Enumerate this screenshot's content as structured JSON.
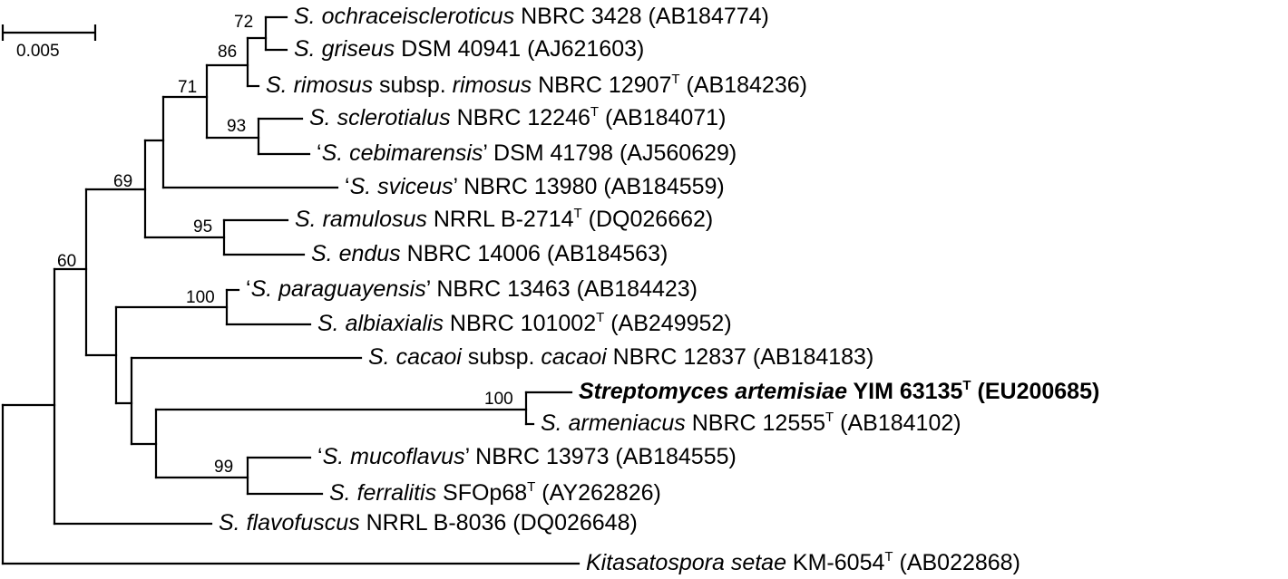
{
  "scale_bar": {
    "label": "0.005"
  },
  "taxa": [
    {
      "id": "ochraceiscleroticus",
      "species": "S. ochraceiscleroticus",
      "strain": "NBRC 3428",
      "type": "",
      "accession": "(AB184774)",
      "quote": false,
      "bold": false
    },
    {
      "id": "griseus",
      "species": "S. griseus",
      "strain": "DSM 40941",
      "type": "",
      "accession": "(AJ621603)",
      "quote": false,
      "bold": false
    },
    {
      "id": "rimosus",
      "species": "S. rimosus",
      "mid": "subsp.",
      "species2": "rimosus",
      "strain": "NBRC 12907",
      "type": "T",
      "accession": "(AB184236)",
      "quote": false,
      "bold": false
    },
    {
      "id": "sclerotialus",
      "species": "S. sclerotialus",
      "strain": "NBRC 12246",
      "type": "T",
      "accession": "(AB184071)",
      "quote": false,
      "bold": false
    },
    {
      "id": "cebimarensis",
      "species": "S. cebimarensis",
      "strain": "DSM 41798",
      "type": "",
      "accession": "(AJ560629)",
      "quote": true,
      "bold": false
    },
    {
      "id": "sviceus",
      "species": "S. sviceus",
      "strain": "NBRC 13980",
      "type": "",
      "accession": "(AB184559)",
      "quote": true,
      "bold": false
    },
    {
      "id": "ramulosus",
      "species": "S. ramulosus",
      "strain": "NRRL B-2714",
      "type": "T",
      "accession": "(DQ026662)",
      "quote": false,
      "bold": false
    },
    {
      "id": "endus",
      "species": "S. endus",
      "strain": "NBRC 14006",
      "type": "",
      "accession": "(AB184563)",
      "quote": false,
      "bold": false
    },
    {
      "id": "paraguayensis",
      "species": "S. paraguayensis",
      "strain": "NBRC 13463",
      "type": "",
      "accession": "(AB184423)",
      "quote": true,
      "bold": false
    },
    {
      "id": "albiaxialis",
      "species": "S. albiaxialis",
      "strain": "NBRC 101002",
      "type": "T",
      "accession": "(AB249952)",
      "quote": false,
      "bold": false
    },
    {
      "id": "cacaoi",
      "species": "S. cacaoi",
      "mid": "subsp.",
      "species2": "cacaoi",
      "strain": "NBRC 12837",
      "type": "",
      "accession": "(AB184183)",
      "quote": false,
      "bold": false
    },
    {
      "id": "artemisiae",
      "species": "Streptomyces artemisiae",
      "strain": "YIM 63135",
      "type": "T",
      "accession": "(EU200685)",
      "quote": false,
      "bold": true
    },
    {
      "id": "armeniacus",
      "species": "S. armeniacus",
      "strain": "NBRC 12555",
      "type": "T",
      "accession": "(AB184102)",
      "quote": false,
      "bold": false
    },
    {
      "id": "mucoflavus",
      "species": "S. mucoflavus",
      "strain": "NBRC 13973",
      "type": "",
      "accession": "(AB184555)",
      "quote": true,
      "bold": false
    },
    {
      "id": "ferralitis",
      "species": "S. ferralitis",
      "strain": "SFOp68",
      "type": "T",
      "accession": "(AY262826)",
      "quote": false,
      "bold": false
    },
    {
      "id": "flavofuscus",
      "species": "S. flavofuscus",
      "strain": "NRRL B-8036",
      "type": "",
      "accession": "(DQ026648)",
      "quote": false,
      "bold": false
    },
    {
      "id": "kitasatospora",
      "species": "Kitasatospora setae",
      "strain": "KM-6054",
      "type": "T",
      "accession": "(AB022868)",
      "quote": false,
      "bold": false
    }
  ],
  "bootstrap_values": [
    "72",
    "86",
    "71",
    "93",
    "69",
    "95",
    "60",
    "100",
    "100",
    "99"
  ]
}
